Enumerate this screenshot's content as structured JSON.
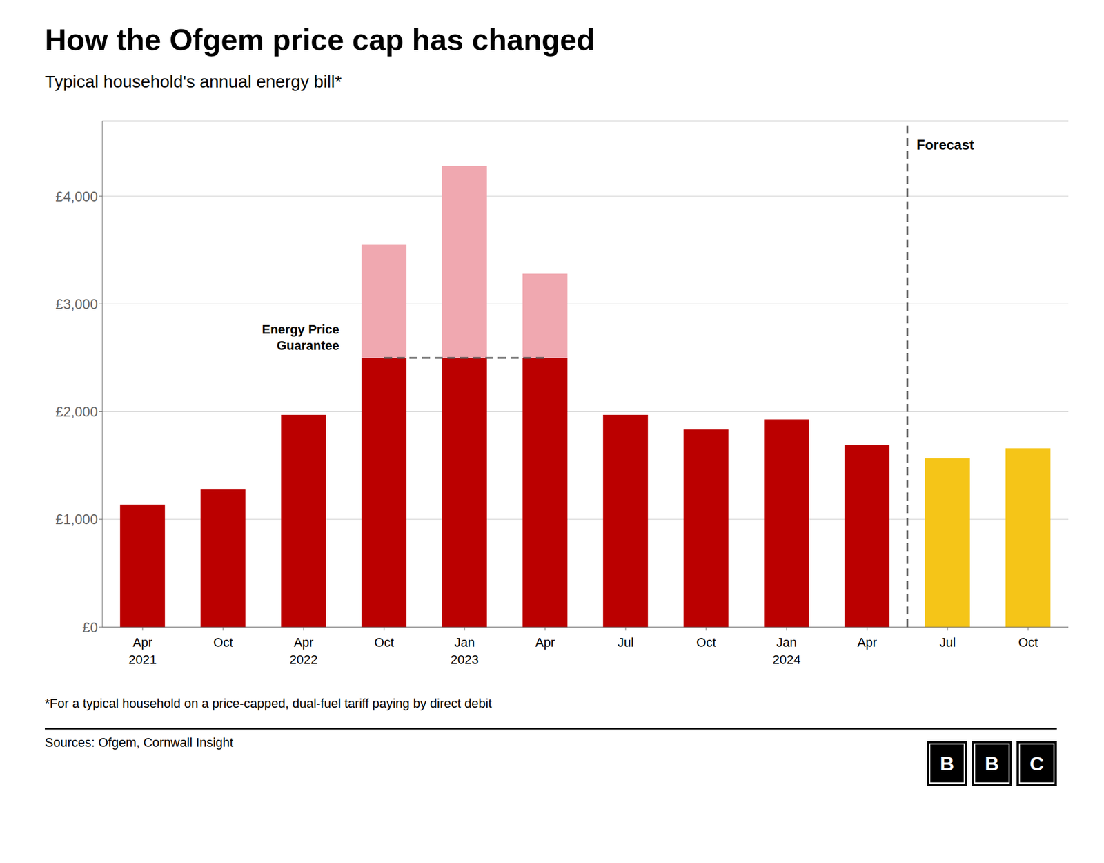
{
  "chart_data": {
    "type": "bar",
    "title": "How the Ofgem price cap has changed",
    "subtitle": "Typical household's annual energy bill*",
    "footnote": "*For a typical household on a price-capped, dual-fuel tariff paying by direct debit",
    "sources": "Sources: Ofgem, Cornwall Insight",
    "logo": "BBC",
    "categories": [
      "Apr\n2021",
      "Oct",
      "Apr\n2022",
      "Oct",
      "Jan\n2023",
      "Apr",
      "Jul",
      "Oct",
      "Jan\n2024",
      "Apr",
      "Jul",
      "Oct"
    ],
    "series": [
      {
        "values": [
          1138,
          1277,
          1971,
          2500,
          2500,
          2500,
          1971,
          1834,
          1928,
          1690,
          1568,
          1660
        ],
        "colors": [
          "#bb0000",
          "#bb0000",
          "#bb0000",
          "#bb0000",
          "#bb0000",
          "#bb0000",
          "#bb0000",
          "#bb0000",
          "#bb0000",
          "#bb0000",
          "#f5c518",
          "#f5c518"
        ]
      },
      {
        "values": [
          null,
          null,
          null,
          1049,
          1779,
          780,
          null,
          null,
          null,
          null,
          null,
          null
        ],
        "color": "#f0a8b0"
      }
    ],
    "stacked": true,
    "ylim": [
      0,
      4700
    ],
    "yticks": [
      {
        "value": 0,
        "label": "£0"
      },
      {
        "value": 1000,
        "label": "£1,000"
      },
      {
        "value": 2000,
        "label": "£2,000"
      },
      {
        "value": 3000,
        "label": "£3,000"
      },
      {
        "value": 4000,
        "label": "£4,000"
      }
    ],
    "grid": true,
    "annotations": [
      {
        "type": "line",
        "text": "Energy Price\nGuarantee",
        "values": [
          null,
          null,
          null,
          2500,
          2500,
          2500,
          null,
          null,
          null,
          null,
          null,
          null
        ],
        "color": "#555555",
        "line_style": "dashed"
      },
      {
        "type": "vline",
        "text": "Forecast",
        "category_index": 10,
        "color": "#555555",
        "line_style": "dashed"
      }
    ]
  }
}
